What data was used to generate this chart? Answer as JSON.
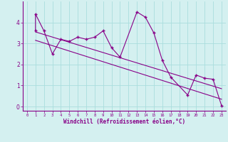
{
  "xlabel": "Windchill (Refroidissement éolien,°C)",
  "bg_color": "#d4f0f0",
  "plot_bg_color": "#d4f0f0",
  "line_color": "#880088",
  "grid_color": "#aadddd",
  "axis_label_color": "#880088",
  "tick_color": "#880088",
  "spine_color": "#880088",
  "data_x": [
    1,
    1,
    2,
    3,
    4,
    5,
    6,
    7,
    8,
    9,
    10,
    11,
    13,
    14,
    15,
    16,
    17,
    19,
    20,
    21,
    22,
    23
  ],
  "data_y": [
    3.6,
    4.4,
    3.6,
    2.5,
    3.2,
    3.1,
    3.3,
    3.2,
    3.3,
    3.6,
    2.8,
    2.35,
    4.5,
    4.25,
    3.5,
    2.2,
    1.4,
    0.55,
    1.5,
    1.35,
    1.3,
    0.05
  ],
  "trend1_x": [
    1,
    23
  ],
  "trend1_y": [
    3.55,
    0.85
  ],
  "trend2_x": [
    1,
    23
  ],
  "trend2_y": [
    3.15,
    0.35
  ],
  "ylim": [
    -0.2,
    5.0
  ],
  "xlim": [
    -0.5,
    23.5
  ],
  "yticks": [
    0,
    1,
    2,
    3,
    4
  ],
  "xticks": [
    0,
    1,
    2,
    3,
    4,
    5,
    6,
    7,
    8,
    9,
    10,
    11,
    12,
    13,
    14,
    15,
    16,
    17,
    18,
    19,
    20,
    21,
    22,
    23
  ]
}
